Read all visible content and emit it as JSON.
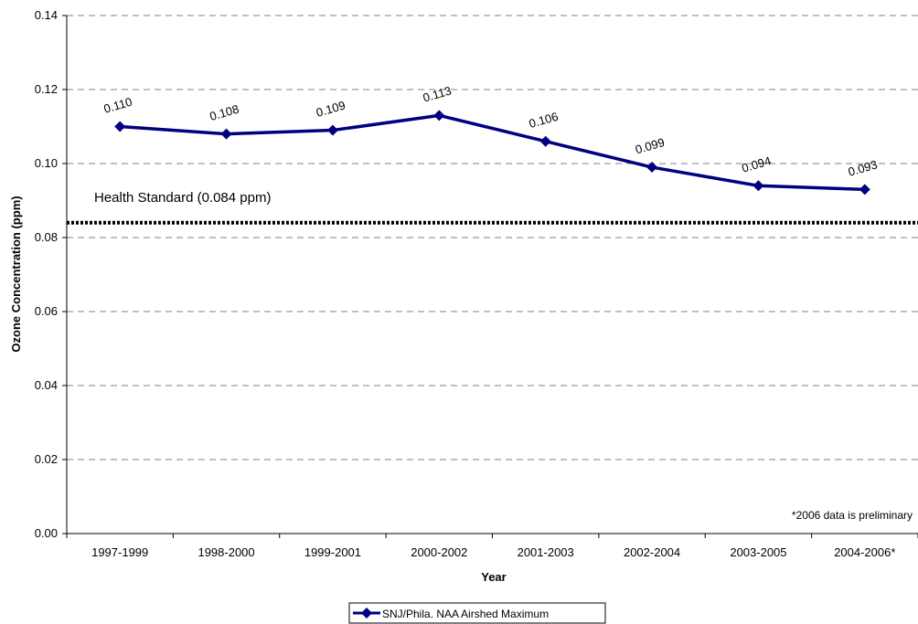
{
  "chart_data": {
    "type": "line",
    "categories": [
      "1997-1999",
      "1998-2000",
      "1999-2001",
      "2000-2002",
      "2001-2003",
      "2002-2004",
      "2003-2005",
      "2004-2006*"
    ],
    "series": [
      {
        "name": "SNJ/Phila. NAA Airshed Maximum",
        "values": [
          0.11,
          0.108,
          0.109,
          0.113,
          0.106,
          0.099,
          0.094,
          0.093
        ],
        "labels": [
          "0.110",
          "0.108",
          "0.109",
          "0.113",
          "0.106",
          "0.099",
          "0.094",
          "0.093"
        ],
        "color": "#000080",
        "marker": "diamond"
      }
    ],
    "xlabel": "Year",
    "ylabel": "Ozone Concentration (ppm)",
    "ylim": [
      0,
      0.14
    ],
    "yticks": [
      "0.00",
      "0.02",
      "0.04",
      "0.06",
      "0.08",
      "0.10",
      "0.12",
      "0.14"
    ],
    "yticks_values": [
      0,
      0.02,
      0.04,
      0.06,
      0.08,
      0.1,
      0.12,
      0.14
    ],
    "grid": true,
    "legend_position": "bottom",
    "reference_line": {
      "value": 0.084,
      "label": "Health Standard (0.084 ppm)",
      "style": "dotted",
      "color": "#000000"
    },
    "annotations": [
      "*2006 data is preliminary"
    ]
  }
}
